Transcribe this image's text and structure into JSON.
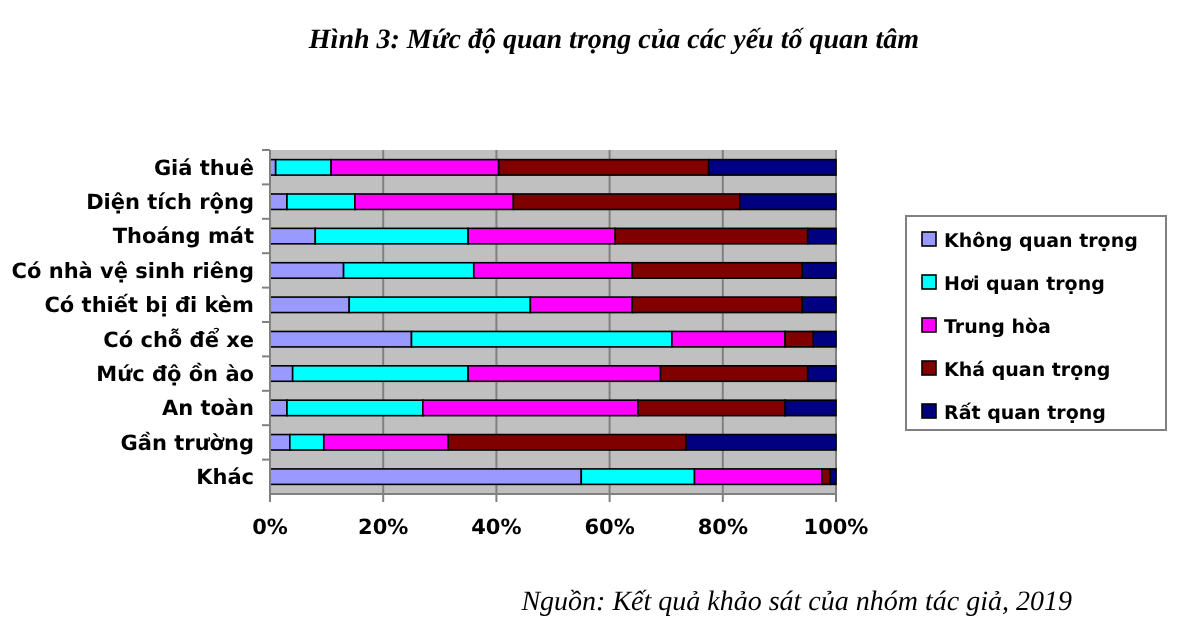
{
  "chart_data": {
    "type": "bar",
    "orientation": "horizontal",
    "stacked": true,
    "title": "Hình 3: Mức độ quan trọng của các yếu tố quan tâm",
    "categories": [
      "Giá thuê",
      "Diện tích rộng",
      "Thoáng mát",
      "Có nhà vệ sinh riêng",
      "Có thiết bị đi kèm",
      "Có chỗ để xe",
      "Mức độ ồn ào",
      "An toàn",
      "Gần trường",
      "Khác"
    ],
    "series": [
      {
        "name": "Không quan trọng",
        "color": "#9999ff",
        "values": [
          1,
          3,
          8,
          13,
          14,
          25,
          4,
          3,
          3.5,
          55
        ]
      },
      {
        "name": "Hơi quan trọng",
        "color": "#00ffff",
        "values": [
          9.8,
          12,
          27,
          23,
          32,
          46,
          31,
          24,
          6,
          20
        ]
      },
      {
        "name": "Trung hòa",
        "color": "#ff00ff",
        "values": [
          29.6,
          28,
          26,
          28,
          18,
          20,
          34,
          38,
          22,
          22.5
        ]
      },
      {
        "name": "Khá quan trọng",
        "color": "#800000",
        "values": [
          37.1,
          40,
          34,
          30,
          30,
          5,
          26,
          26,
          42,
          1.5
        ]
      },
      {
        "name": "Rất quan trọng",
        "color": "#000080",
        "values": [
          22.5,
          17,
          5,
          6,
          6,
          4,
          5,
          9,
          26.5,
          1
        ]
      }
    ],
    "xlim": [
      0,
      100
    ],
    "xticks": [
      {
        "value": 0,
        "label": "0%"
      },
      {
        "value": 20,
        "label": "20%"
      },
      {
        "value": 40,
        "label": "40%"
      },
      {
        "value": 60,
        "label": "60%"
      },
      {
        "value": 80,
        "label": "80%"
      },
      {
        "value": 100,
        "label": "100%"
      }
    ],
    "grid": "x",
    "legend": "right",
    "annotations": [
      "Nguồn: Kết quả khảo sát của nhóm tác giả, 2019"
    ]
  }
}
